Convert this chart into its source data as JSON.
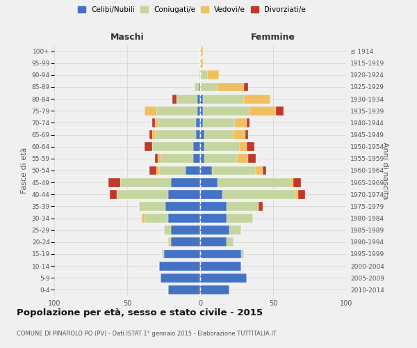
{
  "age_groups": [
    "0-4",
    "5-9",
    "10-14",
    "15-19",
    "20-24",
    "25-29",
    "30-34",
    "35-39",
    "40-44",
    "45-49",
    "50-54",
    "55-59",
    "60-64",
    "65-69",
    "70-74",
    "75-79",
    "80-84",
    "85-89",
    "90-94",
    "95-99",
    "100+"
  ],
  "birth_years": [
    "2010-2014",
    "2005-2009",
    "2000-2004",
    "1995-1999",
    "1990-1994",
    "1985-1989",
    "1980-1984",
    "1975-1979",
    "1970-1974",
    "1965-1969",
    "1960-1964",
    "1955-1959",
    "1950-1954",
    "1945-1949",
    "1940-1944",
    "1935-1939",
    "1930-1934",
    "1925-1929",
    "1920-1924",
    "1915-1919",
    "≤ 1914"
  ],
  "maschi": {
    "celibi": [
      22,
      27,
      28,
      25,
      20,
      20,
      22,
      24,
      22,
      20,
      10,
      5,
      5,
      3,
      3,
      2,
      2,
      1,
      0,
      0,
      0
    ],
    "coniugati": [
      0,
      0,
      0,
      1,
      2,
      5,
      16,
      18,
      35,
      35,
      18,
      22,
      28,
      28,
      26,
      28,
      14,
      3,
      1,
      0,
      0
    ],
    "vedovi": [
      0,
      0,
      0,
      0,
      0,
      0,
      2,
      0,
      0,
      0,
      2,
      2,
      0,
      2,
      2,
      8,
      0,
      0,
      0,
      0,
      0
    ],
    "divorziati": [
      0,
      0,
      0,
      0,
      0,
      0,
      0,
      0,
      5,
      8,
      5,
      2,
      5,
      2,
      2,
      0,
      3,
      0,
      0,
      0,
      0
    ]
  },
  "femmine": {
    "celibi": [
      20,
      32,
      28,
      28,
      18,
      20,
      18,
      18,
      15,
      12,
      8,
      3,
      3,
      3,
      2,
      2,
      2,
      0,
      0,
      0,
      0
    ],
    "coniugati": [
      0,
      0,
      0,
      2,
      5,
      8,
      18,
      22,
      50,
      50,
      30,
      22,
      24,
      20,
      22,
      32,
      28,
      12,
      5,
      0,
      0
    ],
    "vedovi": [
      0,
      0,
      0,
      0,
      0,
      0,
      0,
      0,
      2,
      2,
      5,
      8,
      5,
      8,
      8,
      18,
      18,
      18,
      8,
      2,
      2
    ],
    "divorziati": [
      0,
      0,
      0,
      0,
      0,
      0,
      0,
      3,
      5,
      5,
      2,
      5,
      5,
      2,
      2,
      5,
      0,
      3,
      0,
      0,
      0
    ]
  },
  "colors": {
    "celibi": "#4472c4",
    "coniugati": "#c5d5a0",
    "vedovi": "#f0c060",
    "divorziati": "#c0392b"
  },
  "legend_labels": [
    "Celibi/Nubili",
    "Coniugati/e",
    "Vedovi/e",
    "Divorziati/e"
  ],
  "title": "Popolazione per età, sesso e stato civile - 2015",
  "subtitle": "COMUNE DI PINAROLO PO (PV) - Dati ISTAT 1° gennaio 2015 - Elaborazione TUTTITALIA.IT",
  "xlabel_left": "Maschi",
  "xlabel_right": "Femmine",
  "ylabel_left": "Fasce di età",
  "ylabel_right": "Anni di nascita",
  "xlim": 100,
  "xticks": [
    100,
    50,
    0,
    50,
    100
  ],
  "background_color": "#f0f0f0"
}
